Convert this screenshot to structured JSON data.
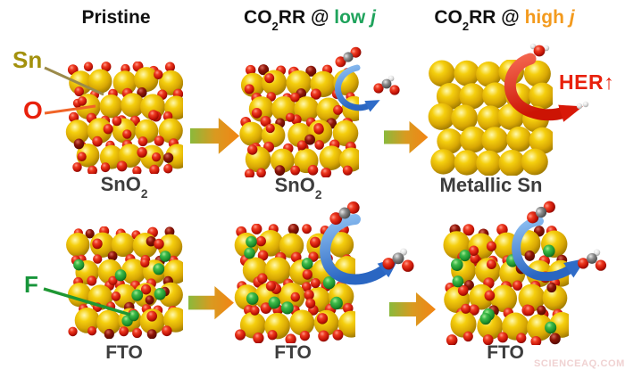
{
  "headers": {
    "pristine": "Pristine",
    "low": {
      "co": "CO",
      "sub": "2",
      "rr": "RR @ ",
      "qual": "low ",
      "j": "j"
    },
    "high": {
      "co": "CO",
      "sub": "2",
      "rr": "RR @ ",
      "qual": "high ",
      "j": "j"
    }
  },
  "atom_labels": {
    "sn": "Sn",
    "o": "O",
    "f": "F"
  },
  "captions": {
    "sno2_pristine": {
      "main": "SnO",
      "sub": "2"
    },
    "sno2_low": {
      "main": "SnO",
      "sub": "2"
    },
    "metallic": {
      "main": "Metallic Sn",
      "sub": ""
    },
    "fto_pristine": "FTO",
    "fto_low": "FTO",
    "fto_high": "FTO"
  },
  "her": {
    "text": "HER",
    "arrow": "↑"
  },
  "watermark": "SCIENCEAQ.COM",
  "colors": {
    "sn_sphere": "#edc40a",
    "o_sphere": "#dd1c0a",
    "f_sphere": "#22a035",
    "carbon_atom": "#7a7a7a",
    "hydrogen_atom": "#ececec",
    "header_text": "#111111",
    "header_low_j": "#1fa35c",
    "header_high_j": "#f39a1d",
    "sn_label": "#a3910d",
    "o_label": "#e8210c",
    "f_label": "#17953a",
    "her_label": "#e8210c",
    "caption_text": "#3d3d3d",
    "transition_arrow_start": "#8ab93c",
    "transition_arrow_end": "#f28414",
    "co2_reduction_arrow": "#3a78d0",
    "her_arrow": "#dd2210",
    "watermark": "#f0d2d2"
  },
  "structures": [
    {
      "id": "sno2-pristine",
      "kind": "oxide",
      "fluorine": false
    },
    {
      "id": "sno2-low-j",
      "kind": "oxide",
      "fluorine": false
    },
    {
      "id": "metallic-sn",
      "kind": "metallic",
      "fluorine": false
    },
    {
      "id": "fto-pristine",
      "kind": "oxide",
      "fluorine": true
    },
    {
      "id": "fto-low-j",
      "kind": "oxide",
      "fluorine": true
    },
    {
      "id": "fto-high-j",
      "kind": "oxide",
      "fluorine": true
    }
  ]
}
